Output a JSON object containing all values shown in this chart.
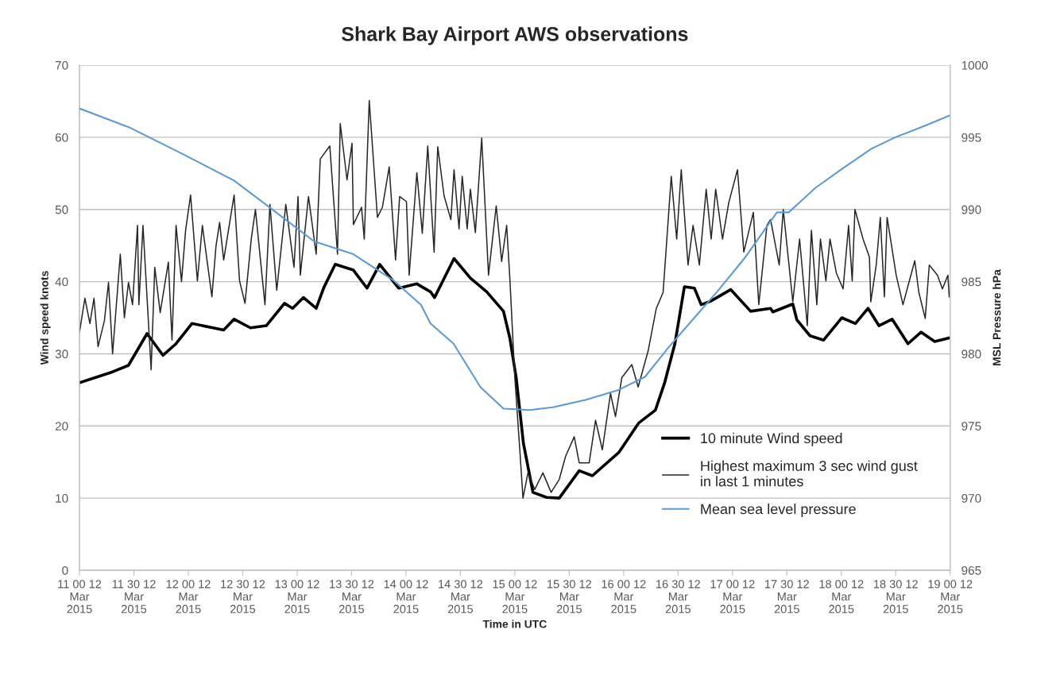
{
  "chart_data": {
    "type": "line",
    "title": "Shark Bay Airport AWS observations",
    "xlabel": "Time in UTC",
    "ylabel": "Wind speed knots",
    "y2label": "MSL Pressure hPa",
    "xlim": [
      "2015-03-11T00:00",
      "2015-03-19T00:00"
    ],
    "ylim": [
      0,
      70
    ],
    "yticks": [
      0,
      10,
      20,
      30,
      40,
      50,
      60,
      70
    ],
    "y2lim": [
      965,
      1000
    ],
    "y2ticks": [
      965,
      970,
      975,
      980,
      985,
      990,
      995,
      1000
    ],
    "xticks": [
      {
        "value": "2015-03-11T00:00",
        "label": "11 00 12\nMar\n2015"
      },
      {
        "value": "2015-03-11T12:00",
        "label": "11 30 12\nMar\n2015"
      },
      {
        "value": "2015-03-12T00:00",
        "label": "12 00 12\nMar\n2015"
      },
      {
        "value": "2015-03-12T12:00",
        "label": "12 30 12\nMar\n2015"
      },
      {
        "value": "2015-03-13T00:00",
        "label": "13 00 12\nMar\n2015"
      },
      {
        "value": "2015-03-13T12:00",
        "label": "13 30 12\nMar\n2015"
      },
      {
        "value": "2015-03-14T00:00",
        "label": "14 00 12\nMar\n2015"
      },
      {
        "value": "2015-03-14T12:00",
        "label": "14 30 12\nMar\n2015"
      },
      {
        "value": "2015-03-15T00:00",
        "label": "15 00 12\nMar\n2015"
      },
      {
        "value": "2015-03-15T12:00",
        "label": "15 30 12\nMar\n2015"
      },
      {
        "value": "2015-03-16T00:00",
        "label": "16 00 12\nMar\n2015"
      },
      {
        "value": "2015-03-16T12:00",
        "label": "16 30 12\nMar\n2015"
      },
      {
        "value": "2015-03-17T00:00",
        "label": "17 00 12\nMar\n2015"
      },
      {
        "value": "2015-03-17T12:00",
        "label": "17 30 12\nMar\n2015"
      },
      {
        "value": "2015-03-18T00:00",
        "label": "18 00 12\nMar\n2015"
      },
      {
        "value": "2015-03-18T12:00",
        "label": "18 30 12\nMar\n2015"
      },
      {
        "value": "2015-03-19T00:00",
        "label": "19 00 12\nMar\n2015"
      }
    ],
    "grid": "y",
    "legend": "bottom right",
    "marker": "none",
    "line_style": "solid",
    "series": [
      {
        "name": "10 minute Wind speed",
        "color": "#000000",
        "x": [
          "2015-03-11T00:00",
          "2015-03-11T07:18",
          "2015-03-11T10:48",
          "2015-03-11T14:54",
          "2015-03-11T18:24",
          "2015-03-11T21:18",
          "2015-03-12T00:48",
          "2015-03-12T07:48",
          "2015-03-12T10:06",
          "2015-03-12T13:42",
          "2015-03-12T17:12",
          "2015-03-12T21:12",
          "2015-03-12T23:00",
          "2015-03-13T01:24",
          "2015-03-13T04:12",
          "2015-03-13T05:54",
          "2015-03-13T08:24",
          "2015-03-13T12:24",
          "2015-03-13T15:24",
          "2015-03-13T18:12",
          "2015-03-13T22:24",
          "2015-03-14T02:24",
          "2015-03-14T05:24",
          "2015-03-14T06:18",
          "2015-03-14T10:36",
          "2015-03-14T14:12",
          "2015-03-14T17:48",
          "2015-03-14T21:30",
          "2015-03-14T22:54",
          "2015-03-15T00:18",
          "2015-03-15T01:54",
          "2015-03-15T04:00",
          "2015-03-15T07:00",
          "2015-03-15T09:48",
          "2015-03-15T14:12",
          "2015-03-15T17:06",
          "2015-03-15T22:54",
          "2015-03-16T03:18",
          "2015-03-16T07:00",
          "2015-03-16T09:00",
          "2015-03-16T11:18",
          "2015-03-16T13:24",
          "2015-03-16T15:36",
          "2015-03-16T17:06",
          "2015-03-16T19:12",
          "2015-03-16T23:36",
          "2015-03-17T04:00",
          "2015-03-17T08:24",
          "2015-03-17T08:54",
          "2015-03-17T13:18",
          "2015-03-17T14:12",
          "2015-03-17T17:06",
          "2015-03-17T20:06",
          "2015-03-18T00:06",
          "2015-03-18T03:06",
          "2015-03-18T05:54",
          "2015-03-18T08:18",
          "2015-03-18T11:12",
          "2015-03-18T14:42",
          "2015-03-18T17:36",
          "2015-03-18T20:36",
          "2015-03-18T23:48"
        ],
        "values": [
          26.0,
          27.5,
          28.4,
          32.8,
          29.8,
          31.4,
          34.2,
          33.3,
          34.8,
          33.6,
          33.9,
          37.0,
          36.3,
          37.8,
          36.3,
          39.2,
          42.4,
          41.6,
          39.1,
          42.4,
          39.1,
          39.7,
          38.6,
          37.8,
          43.2,
          40.5,
          38.6,
          35.9,
          32.2,
          26.7,
          17.6,
          10.8,
          10.1,
          10.0,
          13.8,
          13.1,
          16.3,
          20.4,
          22.2,
          25.9,
          31.4,
          39.3,
          39.1,
          36.8,
          37.3,
          38.9,
          35.9,
          36.3,
          35.8,
          36.9,
          34.7,
          32.5,
          31.9,
          35.0,
          34.2,
          36.3,
          33.9,
          34.8,
          31.4,
          33.0,
          31.7,
          32.2
        ]
      },
      {
        "name": "Highest maximum 3 sec wind gust\nin last 1 minutes",
        "color": "#262626",
        "x": [
          "2015-03-11T00:00",
          "2015-03-11T01:12",
          "2015-03-11T02:18",
          "2015-03-11T03:12",
          "2015-03-11T04:06",
          "2015-03-11T05:30",
          "2015-03-11T06:24",
          "2015-03-11T07:18",
          "2015-03-11T09:00",
          "2015-03-11T09:54",
          "2015-03-11T10:48",
          "2015-03-11T11:42",
          "2015-03-11T12:48",
          "2015-03-11T13:06",
          "2015-03-11T14:00",
          "2015-03-11T15:48",
          "2015-03-11T16:36",
          "2015-03-11T17:48",
          "2015-03-11T19:36",
          "2015-03-11T20:24",
          "2015-03-11T21:18",
          "2015-03-11T22:30",
          "2015-03-11T23:24",
          "2015-03-12T00:30",
          "2015-03-12T02:00",
          "2015-03-12T03:06",
          "2015-03-12T05:12",
          "2015-03-12T06:06",
          "2015-03-12T06:54",
          "2015-03-12T07:48",
          "2015-03-12T10:06",
          "2015-03-12T11:18",
          "2015-03-12T12:30",
          "2015-03-12T13:54",
          "2015-03-12T14:48",
          "2015-03-12T16:54",
          "2015-03-12T18:00",
          "2015-03-12T19:30",
          "2015-03-12T21:30",
          "2015-03-12T23:18",
          "2015-03-13T00:12",
          "2015-03-13T00:42",
          "2015-03-13T02:30",
          "2015-03-13T04:12",
          "2015-03-13T05:06",
          "2015-03-13T07:12",
          "2015-03-13T08:54",
          "2015-03-13T09:30",
          "2015-03-13T11:00",
          "2015-03-13T12:06",
          "2015-03-13T12:24",
          "2015-03-13T14:12",
          "2015-03-13T14:48",
          "2015-03-13T15:54",
          "2015-03-13T17:42",
          "2015-03-13T18:48",
          "2015-03-13T20:18",
          "2015-03-13T21:42",
          "2015-03-13T22:36",
          "2015-03-14T00:06",
          "2015-03-14T00:42",
          "2015-03-14T02:24",
          "2015-03-14T03:36",
          "2015-03-14T04:48",
          "2015-03-14T06:12",
          "2015-03-14T07:00",
          "2015-03-14T08:24",
          "2015-03-14T09:54",
          "2015-03-14T10:36",
          "2015-03-14T11:42",
          "2015-03-14T12:24",
          "2015-03-14T13:30",
          "2015-03-14T14:12",
          "2015-03-14T15:18",
          "2015-03-14T16:42",
          "2015-03-14T18:12",
          "2015-03-14T19:54",
          "2015-03-14T21:06",
          "2015-03-14T22:12",
          "2015-03-14T22:54",
          "2015-03-15T00:00",
          "2015-03-15T01:06",
          "2015-03-15T01:48",
          "2015-03-15T02:54",
          "2015-03-15T04:24",
          "2015-03-15T06:12",
          "2015-03-15T08:00",
          "2015-03-15T09:48",
          "2015-03-15T11:12",
          "2015-03-15T13:06",
          "2015-03-15T14:12",
          "2015-03-15T16:24",
          "2015-03-15T17:48",
          "2015-03-15T19:18",
          "2015-03-15T21:06",
          "2015-03-15T22:12",
          "2015-03-15T23:36",
          "2015-03-16T01:48",
          "2015-03-16T03:12",
          "2015-03-16T05:24",
          "2015-03-16T07:12",
          "2015-03-16T08:42",
          "2015-03-16T10:30",
          "2015-03-16T11:42",
          "2015-03-16T12:42",
          "2015-03-16T14:12",
          "2015-03-16T15:18",
          "2015-03-16T16:42",
          "2015-03-16T18:12",
          "2015-03-16T19:18",
          "2015-03-16T20:18",
          "2015-03-16T21:48",
          "2015-03-16T23:12",
          "2015-03-17T01:06",
          "2015-03-17T02:30",
          "2015-03-17T04:36",
          "2015-03-17T05:48",
          "2015-03-17T07:36",
          "2015-03-17T08:24",
          "2015-03-17T10:18",
          "2015-03-17T11:12",
          "2015-03-17T12:06",
          "2015-03-17T13:18",
          "2015-03-17T14:48",
          "2015-03-17T16:30",
          "2015-03-17T17:24",
          "2015-03-17T18:36",
          "2015-03-17T19:24",
          "2015-03-17T20:36",
          "2015-03-17T21:30",
          "2015-03-17T22:54",
          "2015-03-18T00:24",
          "2015-03-18T01:36",
          "2015-03-18T02:24",
          "2015-03-18T03:00",
          "2015-03-18T04:48",
          "2015-03-18T06:12",
          "2015-03-18T06:30",
          "2015-03-18T07:42",
          "2015-03-18T08:36",
          "2015-03-18T09:30",
          "2015-03-18T10:06",
          "2015-03-18T12:06",
          "2015-03-18T13:36",
          "2015-03-18T14:42",
          "2015-03-18T16:12",
          "2015-03-18T17:06",
          "2015-03-18T18:30",
          "2015-03-18T19:24",
          "2015-03-18T21:12",
          "2015-03-18T22:18",
          "2015-03-18T23:30",
          "2015-03-18T23:48"
        ],
        "values": [
          33.0,
          37.7,
          34.2,
          37.7,
          31.0,
          34.6,
          39.9,
          30.0,
          43.8,
          35.0,
          39.9,
          36.8,
          47.8,
          36.8,
          47.8,
          27.8,
          42.0,
          35.7,
          42.7,
          31.9,
          47.8,
          40.0,
          47.1,
          52.0,
          40.1,
          47.8,
          37.9,
          44.9,
          48.2,
          43.0,
          52.0,
          40.1,
          37.0,
          46.0,
          50.0,
          36.8,
          50.7,
          38.8,
          50.7,
          42.0,
          51.8,
          40.9,
          51.8,
          43.8,
          57.0,
          58.8,
          43.8,
          61.9,
          54.1,
          59.2,
          47.9,
          50.3,
          45.9,
          65.1,
          48.9,
          50.3,
          55.9,
          43.0,
          51.8,
          51.1,
          40.9,
          55.1,
          46.7,
          58.8,
          44.1,
          58.7,
          51.9,
          48.6,
          55.5,
          47.3,
          54.6,
          47.3,
          52.8,
          46.8,
          59.9,
          40.9,
          50.5,
          42.8,
          47.8,
          40.5,
          26.7,
          16.7,
          10.0,
          13.5,
          11.2,
          13.5,
          10.8,
          12.6,
          15.8,
          18.5,
          14.9,
          14.9,
          20.8,
          16.7,
          24.5,
          21.3,
          26.7,
          28.5,
          25.4,
          30.4,
          36.3,
          38.5,
          54.6,
          45.9,
          55.5,
          42.3,
          47.8,
          42.3,
          52.8,
          45.9,
          52.8,
          45.9,
          51.0,
          55.5,
          44.1,
          49.6,
          36.8,
          47.8,
          48.6,
          42.3,
          50.0,
          44.5,
          37.2,
          45.9,
          33.9,
          47.1,
          36.8,
          45.9,
          40.1,
          45.9,
          41.2,
          39.0,
          47.8,
          40.1,
          50.0,
          45.9,
          43.4,
          37.2,
          42.3,
          48.9,
          37.9,
          48.9,
          40.9,
          36.8,
          39.4,
          42.9,
          38.5,
          34.9,
          42.3,
          40.9,
          39.0,
          40.9,
          37.9
        ]
      },
      {
        "name": "Mean sea level pressure",
        "color": "#5b9bd5",
        "axis": "y2",
        "x": [
          "2015-03-11T00:00",
          "2015-03-11T10:54",
          "2015-03-11T22:24",
          "2015-03-12T10:06",
          "2015-03-12T17:42",
          "2015-03-13T03:42",
          "2015-03-13T12:24",
          "2015-03-13T21:12",
          "2015-03-14T03:18",
          "2015-03-14T05:24",
          "2015-03-14T10:30",
          "2015-03-14T16:24",
          "2015-03-14T21:30",
          "2015-03-15T03:18",
          "2015-03-15T08:24",
          "2015-03-15T15:36",
          "2015-03-15T22:54",
          "2015-03-16T04:42",
          "2015-03-16T09:48",
          "2015-03-16T15:36",
          "2015-03-16T20:36",
          "2015-03-17T02:36",
          "2015-03-17T09:48",
          "2015-03-17T12:24",
          "2015-03-17T18:18",
          "2015-03-18T00:06",
          "2015-03-18T06:36",
          "2015-03-18T11:54",
          "2015-03-18T17:36",
          "2015-03-18T23:48"
        ],
        "values": [
          997.0,
          995.7,
          993.9,
          992.0,
          990.2,
          987.8,
          986.9,
          985.1,
          983.4,
          982.1,
          980.7,
          977.7,
          976.2,
          976.1,
          976.3,
          976.8,
          977.5,
          978.4,
          980.4,
          982.5,
          984.3,
          986.6,
          989.8,
          989.8,
          991.5,
          992.8,
          994.2,
          995.0,
          995.7,
          996.5
        ]
      }
    ]
  }
}
